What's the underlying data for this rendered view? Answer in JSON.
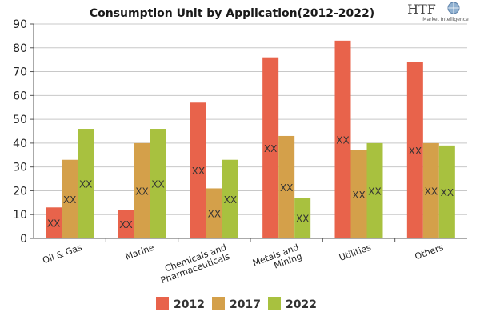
{
  "logo": {
    "text": "HTF",
    "subtext": "Market Intelligence"
  },
  "colors": {
    "2012": "#e8634b",
    "2017": "#d4a04a",
    "2022": "#a8c13f",
    "grid": "#c8c8c8",
    "axis": "#555555"
  },
  "chart_data": {
    "type": "bar",
    "title": "Consumption Unit by  Application(2012-2022)",
    "xlabel": "",
    "ylabel": "",
    "ylim": [
      0,
      90
    ],
    "yticks": [
      0,
      10,
      20,
      30,
      40,
      50,
      60,
      70,
      80,
      90
    ],
    "grid": true,
    "legend_position": "bottom",
    "categories": [
      "Oil & Gas",
      "Marine",
      "Chemicals and Pharmaceuticals",
      "Metals and Mining",
      "Utilities",
      "Others"
    ],
    "category_tick_labels": [
      [
        "Oil & Gas"
      ],
      [
        "Marine"
      ],
      [
        "Chemicals and",
        "Pharmaceuticals"
      ],
      [
        "Metals and",
        "Mining"
      ],
      [
        "Utilities"
      ],
      [
        "Others"
      ]
    ],
    "series": [
      {
        "name": "2012",
        "values": [
          13,
          12,
          57,
          76,
          83,
          74
        ]
      },
      {
        "name": "2017",
        "values": [
          33,
          40,
          21,
          43,
          37,
          40
        ]
      },
      {
        "name": "2022",
        "values": [
          46,
          46,
          33,
          17,
          40,
          39
        ]
      }
    ],
    "data_label": "XX"
  }
}
